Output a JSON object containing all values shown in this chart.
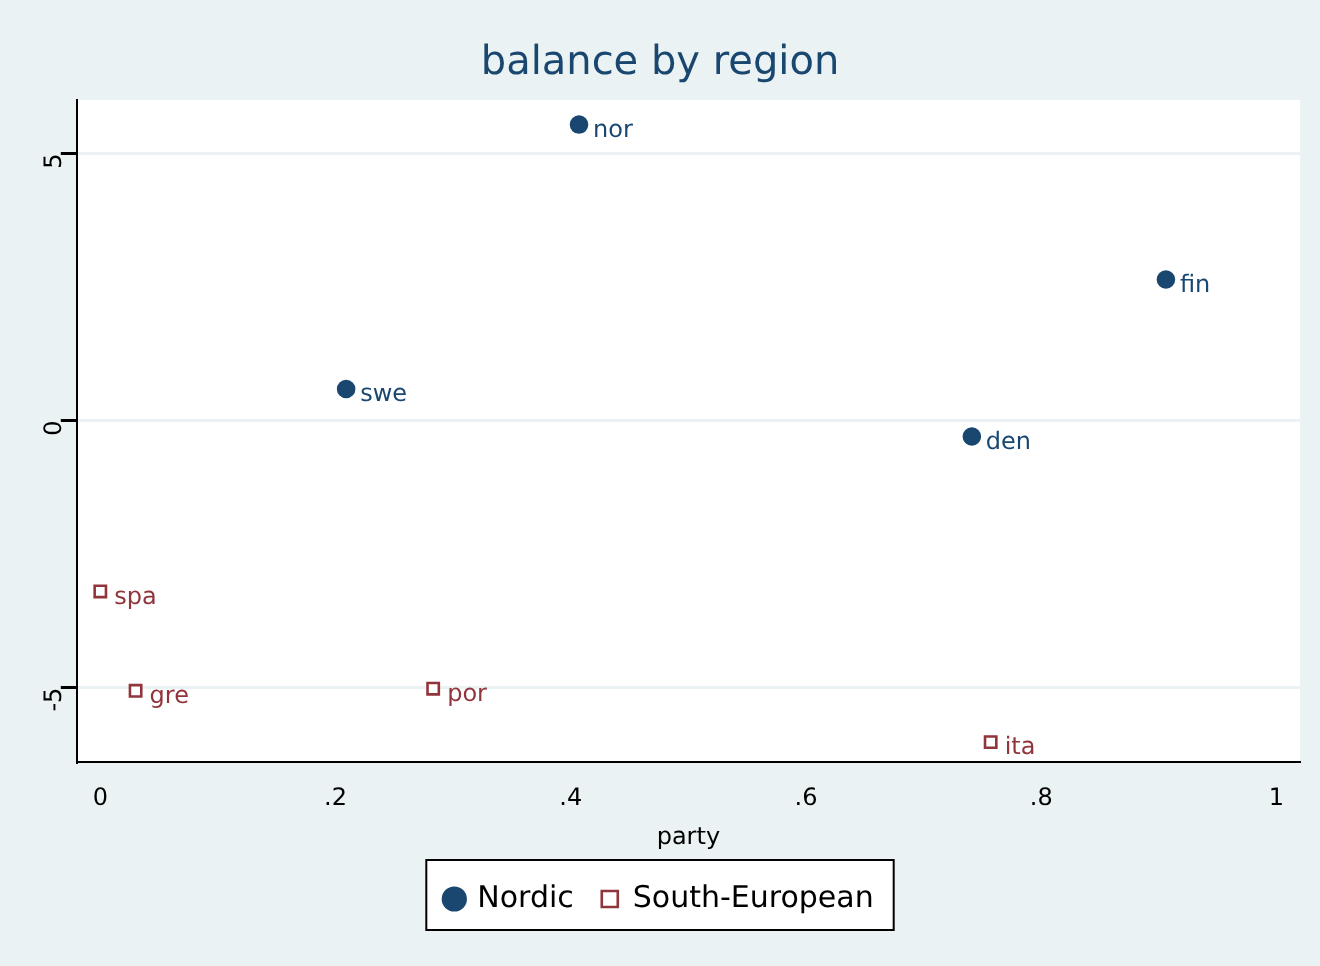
{
  "chart_data": {
    "type": "scatter",
    "title": "balance by region",
    "xlabel": "party",
    "xlim": [
      -0.02,
      1.02
    ],
    "ylim": [
      -6.4,
      6.0
    ],
    "xticks": [
      {
        "value": 0,
        "label": "0"
      },
      {
        "value": 0.2,
        "label": ".2"
      },
      {
        "value": 0.4,
        "label": ".4"
      },
      {
        "value": 0.6,
        "label": ".6"
      },
      {
        "value": 0.8,
        "label": ".8"
      },
      {
        "value": 1,
        "label": "1"
      }
    ],
    "yticks": [
      -5,
      0,
      5
    ],
    "grid": "y",
    "legend": "bottom",
    "series": [
      {
        "name": "Nordic",
        "color": "#1a476f",
        "marker": "circle",
        "x": [
          0.407,
          0.906,
          0.209,
          0.741
        ],
        "values": [
          5.54,
          2.64,
          0.59,
          -0.3
        ]
      },
      {
        "name": "South-European",
        "color": "#90353b",
        "marker": "square",
        "x": [
          0.0,
          0.03,
          0.283,
          0.757
        ],
        "values": [
          -3.2,
          -5.06,
          -5.02,
          -6.02
        ]
      }
    ],
    "annotations": [
      {
        "text": "nor",
        "x": 0.407,
        "y": 5.54
      },
      {
        "text": "fin",
        "x": 0.906,
        "y": 2.64
      },
      {
        "text": "swe",
        "x": 0.209,
        "y": 0.59
      },
      {
        "text": "den",
        "x": 0.741,
        "y": -0.3
      },
      {
        "text": "spa",
        "x": 0.0,
        "y": -3.2
      },
      {
        "text": "gre",
        "x": 0.03,
        "y": -5.06
      },
      {
        "text": "por",
        "x": 0.283,
        "y": -5.02
      },
      {
        "text": "ita",
        "x": 0.757,
        "y": -6.02
      }
    ]
  }
}
